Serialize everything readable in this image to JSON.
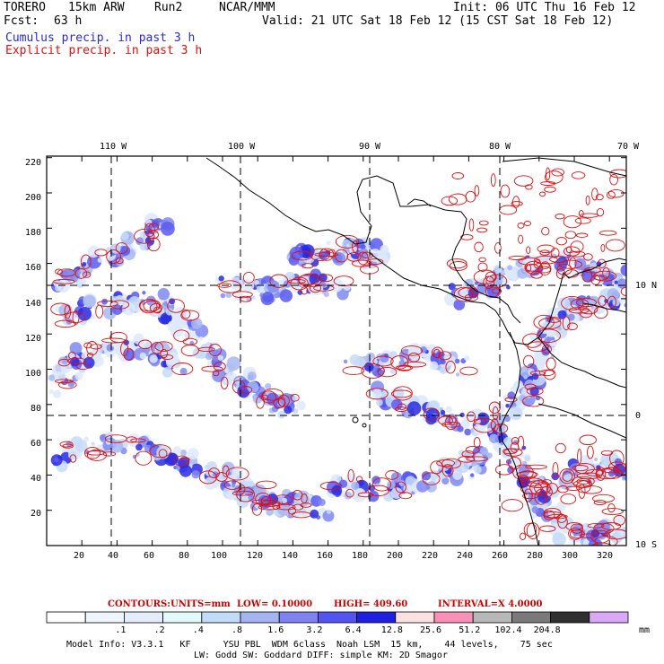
{
  "header": {
    "model": "TORERO",
    "resolution": "15km ARW",
    "run": "Run2",
    "org": "NCAR/MMM",
    "init": "Init: 06 UTC Thu 16 Feb 12",
    "fcst_label": "Fcst:",
    "fcst_value": "63 h",
    "valid": "Valid: 21 UTC Sat 18 Feb 12 (15 CST Sat 18 Feb 12)",
    "field1": "Cumulus precip. in past 3 h",
    "field2": "Explicit precip. in past 3 h",
    "colors": {
      "field1": "#2a2ad8",
      "field2": "#e01010"
    }
  },
  "map": {
    "top_lon_labels": [
      "110 W",
      "100 W",
      "90 W",
      "80 W",
      "70 W"
    ],
    "right_lat_labels": [
      "10 N",
      "0",
      "10 S"
    ],
    "left_ticks": [
      "220",
      "200",
      "180",
      "160",
      "140",
      "120",
      "100",
      "80",
      "60",
      "40",
      "20"
    ],
    "bottom_ticks": [
      "20",
      "40",
      "60",
      "80",
      "100",
      "120",
      "140",
      "160",
      "180",
      "200",
      "220",
      "240",
      "260",
      "280",
      "300",
      "320"
    ]
  },
  "contours": {
    "label": "CONTOURS:",
    "units": "UNITS=mm",
    "low": "LOW= 0.10000",
    "high": "HIGH= 409.60",
    "interval": "INTERVAL=X 4.0000"
  },
  "colorbar": {
    "labels": [
      ".1",
      ".2",
      ".4",
      ".8",
      "1.6",
      "3.2",
      "6.4",
      "12.8",
      "25.6",
      "51.2",
      "102.4",
      "204.8"
    ],
    "unit": "mm",
    "colors": [
      "#ffffff",
      "#f0f4fb",
      "#e3eefa",
      "#e2fafa",
      "#c2dbf8",
      "#a4b4f0",
      "#7f83f2",
      "#5454f0",
      "#1f1fe0",
      "#fde0e4",
      "#f890b8",
      "#b8b8b8",
      "#7a7a7a",
      "#303030",
      "#dba8f8"
    ]
  },
  "footer": {
    "line1": "Model Info: V3.3.1   KF      YSU PBL  WDM 6class  Noah LSM  15 km,    44 levels,    75 sec",
    "line2": "LW: Godd SW: Goddard DIFF: simple KM: 2D Smagor"
  }
}
